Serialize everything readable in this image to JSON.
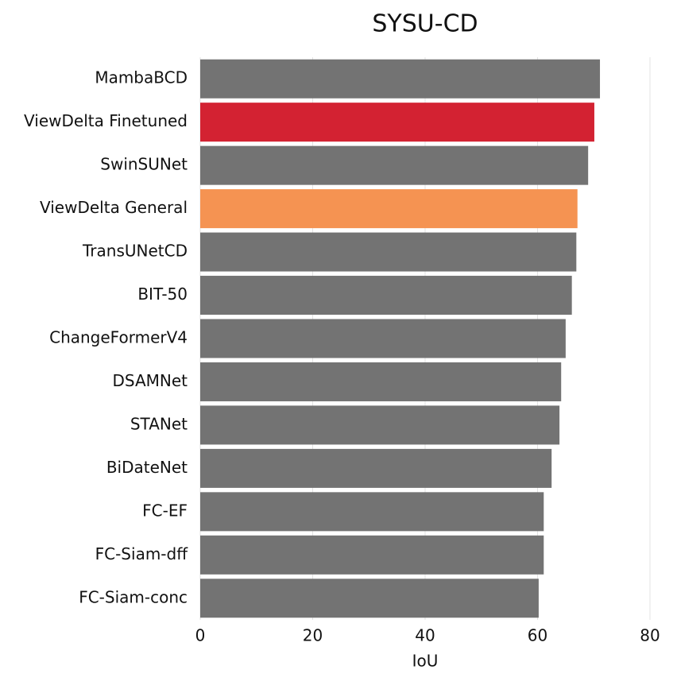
{
  "chart_data": {
    "type": "barh",
    "title": "SYSU-CD",
    "x_label": "IoU",
    "categories": [
      "MambaBCD",
      "ViewDelta Finetuned",
      "SwinSUNet",
      "ViewDelta General",
      "TransUNetCD",
      "BIT-50",
      "ChangeFormerV4",
      "DSAMNet",
      "STANet",
      "BiDateNet",
      "FC-EF",
      "FC-Siam-dff",
      "FC-Siam-conc"
    ],
    "values": [
      71.1,
      70.1,
      69.0,
      67.1,
      66.9,
      66.1,
      65.0,
      64.2,
      63.9,
      62.5,
      61.1,
      61.1,
      60.2
    ],
    "colors": [
      "#737373",
      "#d32232",
      "#737373",
      "#f59352",
      "#737373",
      "#737373",
      "#737373",
      "#737373",
      "#737373",
      "#737373",
      "#737373",
      "#737373",
      "#737373"
    ],
    "xlim": [
      0,
      80
    ],
    "xticks": [
      0,
      20,
      40,
      60,
      80
    ],
    "grid": true
  }
}
